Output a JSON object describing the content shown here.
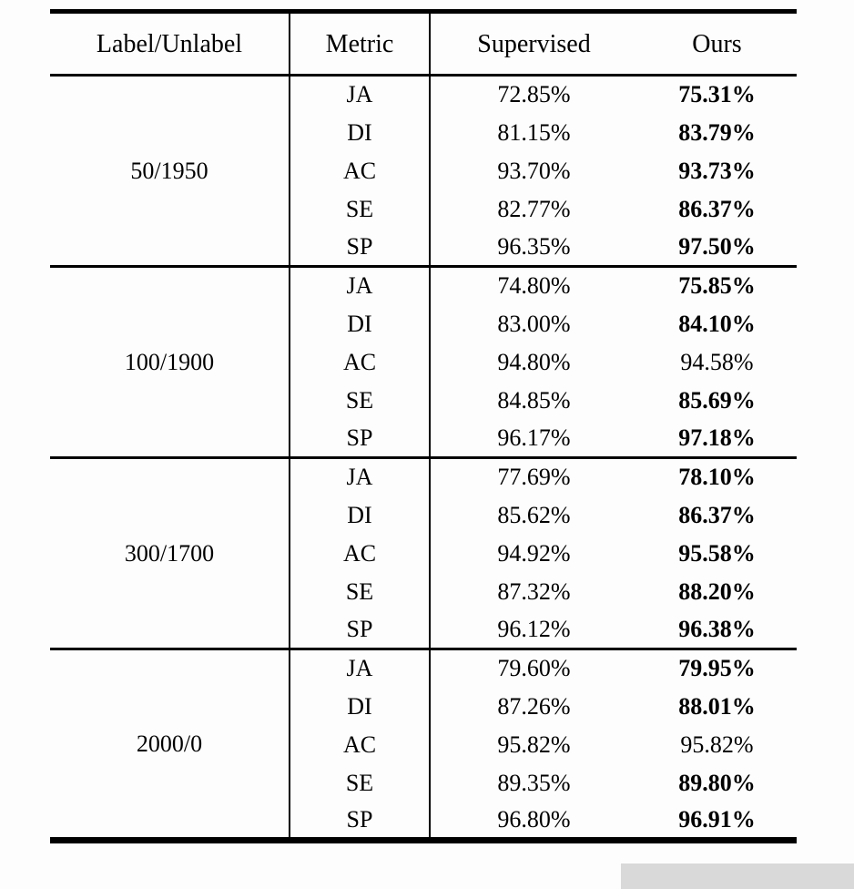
{
  "table": {
    "headers": [
      "Label/Unlabel",
      "Metric",
      "Supervised",
      "Ours"
    ],
    "groups": [
      {
        "label": "50/1950",
        "rows": [
          {
            "metric": "JA",
            "supervised": "72.85%",
            "ours": "75.31%",
            "ours_bold": true
          },
          {
            "metric": "DI",
            "supervised": "81.15%",
            "ours": "83.79%",
            "ours_bold": true
          },
          {
            "metric": "AC",
            "supervised": "93.70%",
            "ours": "93.73%",
            "ours_bold": true
          },
          {
            "metric": "SE",
            "supervised": "82.77%",
            "ours": "86.37%",
            "ours_bold": true
          },
          {
            "metric": "SP",
            "supervised": "96.35%",
            "ours": "97.50%",
            "ours_bold": true
          }
        ]
      },
      {
        "label": "100/1900",
        "rows": [
          {
            "metric": "JA",
            "supervised": "74.80%",
            "ours": "75.85%",
            "ours_bold": true
          },
          {
            "metric": "DI",
            "supervised": "83.00%",
            "ours": "84.10%",
            "ours_bold": true
          },
          {
            "metric": "AC",
            "supervised": "94.80%",
            "ours": "94.58%",
            "ours_bold": false
          },
          {
            "metric": "SE",
            "supervised": "84.85%",
            "ours": "85.69%",
            "ours_bold": true
          },
          {
            "metric": "SP",
            "supervised": "96.17%",
            "ours": "97.18%",
            "ours_bold": true
          }
        ]
      },
      {
        "label": "300/1700",
        "rows": [
          {
            "metric": "JA",
            "supervised": "77.69%",
            "ours": "78.10%",
            "ours_bold": true
          },
          {
            "metric": "DI",
            "supervised": "85.62%",
            "ours": "86.37%",
            "ours_bold": true
          },
          {
            "metric": "AC",
            "supervised": "94.92%",
            "ours": "95.58%",
            "ours_bold": true
          },
          {
            "metric": "SE",
            "supervised": "87.32%",
            "ours": "88.20%",
            "ours_bold": true
          },
          {
            "metric": "SP",
            "supervised": "96.12%",
            "ours": "96.38%",
            "ours_bold": true
          }
        ]
      },
      {
        "label": "2000/0",
        "rows": [
          {
            "metric": "JA",
            "supervised": "79.60%",
            "ours": "79.95%",
            "ours_bold": true
          },
          {
            "metric": "DI",
            "supervised": "87.26%",
            "ours": "88.01%",
            "ours_bold": true
          },
          {
            "metric": "AC",
            "supervised": "95.82%",
            "ours": "95.82%",
            "ours_bold": false
          },
          {
            "metric": "SE",
            "supervised": "89.35%",
            "ours": "89.80%",
            "ours_bold": true
          },
          {
            "metric": "SP",
            "supervised": "96.80%",
            "ours": "96.91%",
            "ours_bold": true
          }
        ]
      }
    ]
  },
  "colors": {
    "rule": "#000000",
    "background": "#fdfdfd",
    "artifact_style": "background:#d9d9d9"
  }
}
